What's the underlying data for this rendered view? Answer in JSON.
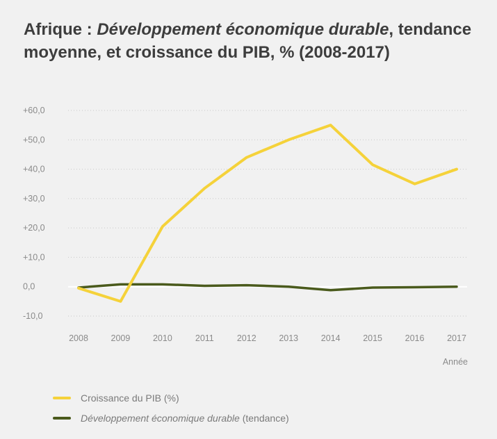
{
  "title": {
    "prefix": "Afrique : ",
    "italic": "Développement économique durable",
    "suffix": ", tendance moyenne, et croissance du PIB, % (2008-2017)"
  },
  "chart_data": {
    "type": "line",
    "x": [
      "2008",
      "2009",
      "2010",
      "2011",
      "2012",
      "2013",
      "2014",
      "2015",
      "2016",
      "2017"
    ],
    "xlabel": "Année",
    "ylabel": "",
    "ylim": [
      -10,
      60
    ],
    "yticks": [
      "+60,0",
      "+50,0",
      "+40,0",
      "+30,0",
      "+20,0",
      "+10,0",
      "0,0",
      "-10,0"
    ],
    "ytick_values": [
      60,
      50,
      40,
      30,
      20,
      10,
      0,
      -10
    ],
    "grid": true,
    "legend_position": "bottom-left",
    "series": [
      {
        "name": "Croissance du PIB (%)",
        "color": "#f5d23a",
        "values": [
          -0.5,
          -5,
          20.5,
          33.5,
          44,
          50,
          55,
          41.5,
          35,
          40
        ]
      },
      {
        "name_italic": "Développement économique durable",
        "name_suffix": " (tendance)",
        "color": "#4a5a1c",
        "values": [
          -0.3,
          0.8,
          0.8,
          0.3,
          0.5,
          0.0,
          -1.2,
          -0.3,
          -0.2,
          0.0
        ]
      }
    ]
  }
}
